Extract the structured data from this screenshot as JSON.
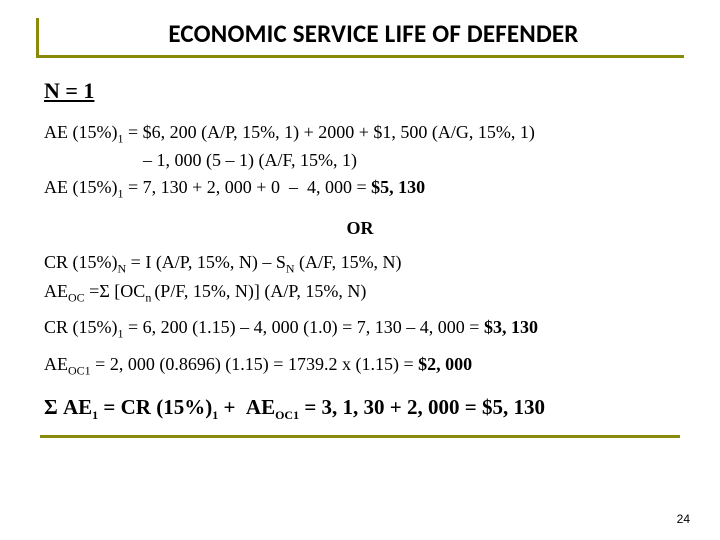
{
  "colors": {
    "accent": "#8a8a0a",
    "text": "#000000",
    "background": "#ffffff"
  },
  "typography": {
    "title_font": "Calibri",
    "body_font": "Times New Roman",
    "title_fontsize_pt": 19,
    "body_fontsize_pt": 14,
    "n1_fontsize_pt": 17,
    "sum_fontsize_pt": 16
  },
  "title": "ECONOMIC SERVICE LIFE OF DEFENDER",
  "n_heading": "N = 1",
  "eq1_line1": "AE (15%)",
  "eq1_sub1": "1",
  "eq1_line1_rhs": " = $6, 200 (A/P, 15%, 1) + 2000 + $1, 500 (A/G, 15%, 1)",
  "eq1_line2_indent": "                      – 1, 000 (5 – 1) (A/F, 15%, 1)",
  "eq2_lhs": "AE (15%)",
  "eq2_sub": "1",
  "eq2_rhs_a": " = 7, 130 + 2, 000 + 0  –  4, 000 = ",
  "eq2_result": "$5, 130",
  "or_label": "OR",
  "cr_general_a": "CR (15%)",
  "cr_general_sub1": "N",
  "cr_general_b": " = I (A/P, 15%, N) – S",
  "cr_general_sub2": "N",
  "cr_general_c": " (A/F, 15%, N)",
  "aeoc_general_a": "AE",
  "aeoc_general_sub1": "OC",
  "aeoc_general_b": " =Σ [OC",
  "aeoc_general_sub2": "n ",
  "aeoc_general_c": "(P/F, 15%, N)] (A/P, 15%, N)",
  "cr_calc_a": "CR (15%)",
  "cr_calc_sub": "1",
  "cr_calc_b": " = 6, 200 (1.15) – 4, 000 (1.0) = 7, 130 – 4, 000 = ",
  "cr_calc_result": "$3, 130",
  "aeoc_calc_a": "AE",
  "aeoc_calc_sub": "OC1",
  "aeoc_calc_b": " = 2, 000 (0.8696) (1.15) = 1739.2 x (1.15) = ",
  "aeoc_calc_result": "$2, 000",
  "sum_sigma": "Σ AE",
  "sum_sub1": "1",
  "sum_eq": " = CR (15%)",
  "sum_sub2": "1",
  "sum_plus": " +  AE",
  "sum_sub3": "OC1",
  "sum_rhs": " = 3, 1, 30 + 2, 000 = $5, 130",
  "page_number": "24"
}
